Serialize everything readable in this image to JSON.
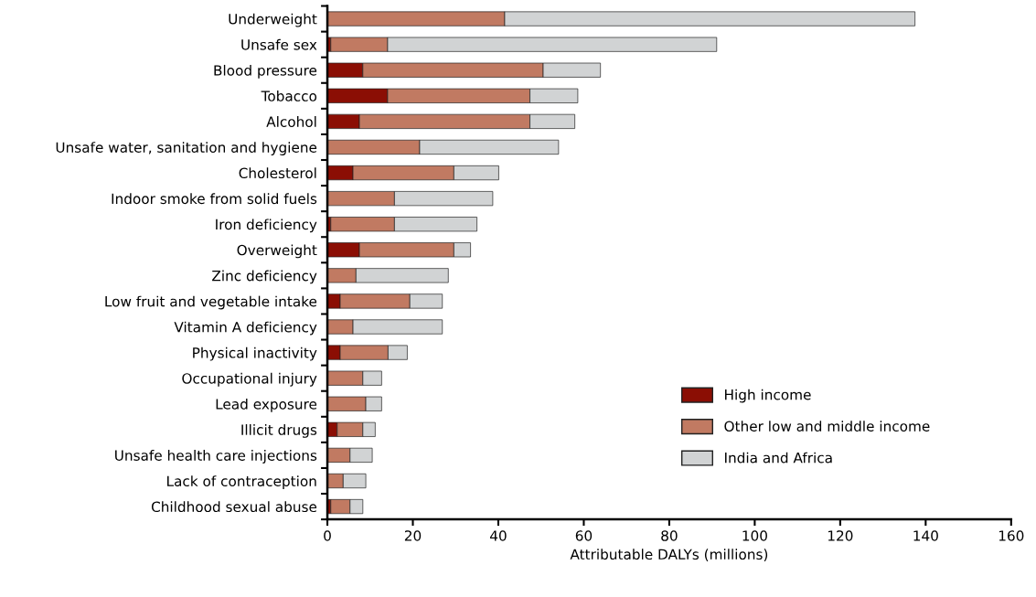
{
  "chart_data": {
    "type": "bar",
    "orientation": "horizontal",
    "stacked": true,
    "categories": [
      "Underweight",
      "Unsafe sex",
      "Blood pressure",
      "Tobacco",
      "Alcohol",
      "Unsafe water, sanitation and hygiene",
      "Cholesterol",
      "Indoor smoke from solid fuels",
      "Iron deficiency",
      "Overweight",
      "Zinc deficiency",
      "Low fruit and vegetable intake",
      "Vitamin A deficiency",
      "Physical inactivity",
      "Occupational injury",
      "Lead exposure",
      "Illicit drugs",
      "Unsafe health care injections",
      "Lack of contraception",
      "Childhood sexual abuse"
    ],
    "series": [
      {
        "name": "High income",
        "color": "#8b0e04",
        "values": [
          0,
          0.8,
          8.3,
          14.1,
          7.5,
          0,
          6.0,
          0,
          0.8,
          7.5,
          0,
          3.0,
          0,
          3.0,
          0,
          0,
          2.3,
          0,
          0,
          0.8
        ]
      },
      {
        "name": "Other low and middle income",
        "color": "#c17a62",
        "values": [
          41.5,
          13.3,
          42.2,
          33.3,
          39.9,
          21.6,
          23.6,
          15.7,
          14.9,
          22.1,
          6.7,
          16.3,
          6.0,
          11.2,
          8.3,
          9.0,
          6.0,
          5.3,
          3.7,
          4.5
        ]
      },
      {
        "name": "India and Africa",
        "color": "#d1d3d4",
        "values": [
          96,
          77,
          13.4,
          11.2,
          10.5,
          32.5,
          10.5,
          23.0,
          19.3,
          3.9,
          21.6,
          7.6,
          20.9,
          4.5,
          4.4,
          3.7,
          2.9,
          5.2,
          5.3,
          3.0
        ]
      }
    ],
    "xlabel": "Attributable DALYs (millions)",
    "xlim": [
      0,
      160
    ],
    "xticks": [
      0,
      20,
      40,
      60,
      80,
      100,
      120,
      140,
      160
    ],
    "grid": false,
    "legend": "bottom right"
  }
}
